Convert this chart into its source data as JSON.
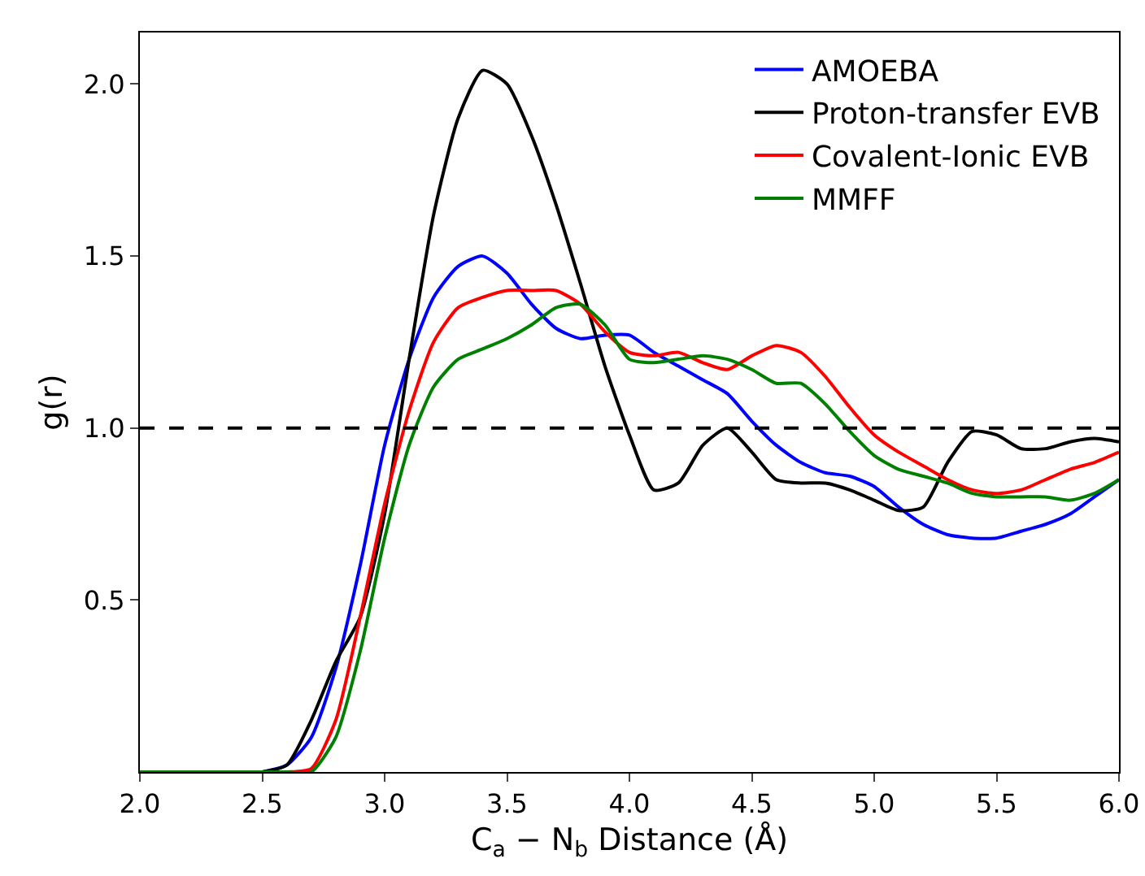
{
  "chart_data": {
    "type": "line",
    "xlabel": "C$_{a}$ − N$_{b}$ Distance (Å)",
    "ylabel": "g(r)",
    "x": [
      2.0,
      2.1,
      2.2,
      2.3,
      2.4,
      2.5,
      2.6,
      2.7,
      2.8,
      2.9,
      3.0,
      3.1,
      3.2,
      3.3,
      3.4,
      3.5,
      3.6,
      3.7,
      3.8,
      3.9,
      4.0,
      4.1,
      4.2,
      4.3,
      4.4,
      4.5,
      4.6,
      4.7,
      4.8,
      4.9,
      5.0,
      5.1,
      5.2,
      5.3,
      5.4,
      5.5,
      5.6,
      5.7,
      5.8,
      5.9,
      6.0
    ],
    "series": [
      {
        "name": "AMOEBA",
        "color": "#0000ff",
        "values": [
          null,
          null,
          null,
          null,
          null,
          0,
          0.02,
          0.1,
          0.3,
          0.6,
          0.95,
          1.2,
          1.38,
          1.47,
          1.5,
          1.45,
          1.36,
          1.29,
          1.26,
          1.27,
          1.27,
          1.22,
          1.18,
          1.14,
          1.1,
          1.02,
          0.95,
          0.9,
          0.87,
          0.86,
          0.83,
          0.77,
          0.72,
          0.69,
          0.68,
          0.68,
          0.7,
          0.72,
          0.75,
          0.8,
          0.85
        ]
      },
      {
        "name": "Proton-transfer EVB",
        "color": "#000000",
        "values": [
          null,
          null,
          null,
          null,
          null,
          0,
          0.02,
          0.15,
          0.32,
          0.45,
          0.75,
          1.2,
          1.62,
          1.9,
          2.04,
          2.0,
          1.85,
          1.65,
          1.42,
          1.18,
          0.98,
          0.82,
          0.84,
          0.95,
          1.0,
          0.93,
          0.85,
          0.84,
          0.84,
          0.82,
          0.79,
          0.76,
          0.77,
          0.9,
          0.99,
          0.98,
          0.94,
          0.94,
          0.96,
          0.97,
          0.96
        ]
      },
      {
        "name": "Covalent-Ionic EVB",
        "color": "#ff0000",
        "values": [
          null,
          null,
          null,
          null,
          null,
          0,
          0,
          0.01,
          0.15,
          0.45,
          0.78,
          1.05,
          1.25,
          1.35,
          1.38,
          1.4,
          1.4,
          1.4,
          1.36,
          1.28,
          1.22,
          1.21,
          1.22,
          1.19,
          1.17,
          1.21,
          1.24,
          1.22,
          1.15,
          1.06,
          0.98,
          0.93,
          0.89,
          0.85,
          0.82,
          0.81,
          0.82,
          0.85,
          0.88,
          0.9,
          0.93
        ]
      },
      {
        "name": "MMFF",
        "color": "#008000",
        "values": [
          0,
          0,
          0,
          0,
          0,
          0,
          0,
          0,
          0.1,
          0.35,
          0.68,
          0.95,
          1.12,
          1.2,
          1.23,
          1.26,
          1.3,
          1.35,
          1.36,
          1.3,
          1.2,
          1.19,
          1.2,
          1.21,
          1.2,
          1.17,
          1.13,
          1.13,
          1.07,
          0.99,
          0.92,
          0.88,
          0.86,
          0.84,
          0.81,
          0.8,
          0.8,
          0.8,
          0.79,
          0.81,
          0.85
        ]
      }
    ],
    "xlim": [
      2.0,
      6.0
    ],
    "xticks": [
      {
        "value": 2,
        "label": "2.0"
      },
      2.5,
      {
        "value": 3,
        "label": "3.0"
      },
      3.5,
      {
        "value": 4,
        "label": "4.0"
      },
      4.5,
      {
        "value": 5,
        "label": "5.0"
      },
      5.5,
      {
        "value": 6,
        "label": "6.0"
      }
    ],
    "ylim": [
      0,
      2.15
    ],
    "yticks": [
      0.5,
      {
        "value": 1,
        "label": "1.0"
      },
      1.5,
      {
        "value": 2,
        "label": "2.0"
      }
    ],
    "ref_lines": [
      {
        "axis": "y",
        "value": 1,
        "color": "#000000",
        "line_style": "dashed"
      }
    ],
    "legend": "top right",
    "grid": false,
    "marker": "none",
    "line_style": "solid"
  }
}
